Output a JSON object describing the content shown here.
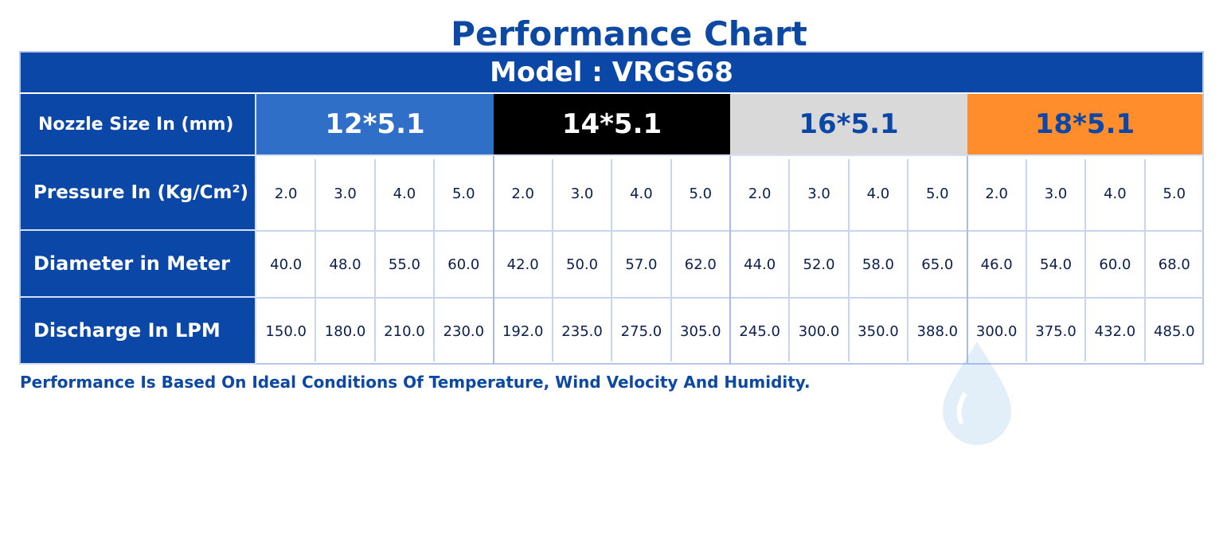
{
  "title": "Performance Chart",
  "model_label": "Model : VRGS68",
  "row_labels": {
    "nozzle": "Nozzle Size In (mm)",
    "pressure": "Pressure In (Kg/Cm²)",
    "diameter": "Diameter in Meter",
    "discharge": "Discharge In LPM"
  },
  "nozzles": [
    "12*5.1",
    "14*5.1",
    "16*5.1",
    "18*5.1"
  ],
  "pressure": [
    "2.0",
    "3.0",
    "4.0",
    "5.0",
    "2.0",
    "3.0",
    "4.0",
    "5.0",
    "2.0",
    "3.0",
    "4.0",
    "5.0",
    "2.0",
    "3.0",
    "4.0",
    "5.0"
  ],
  "diameter": [
    "40.0",
    "48.0",
    "55.0",
    "60.0",
    "42.0",
    "50.0",
    "57.0",
    "62.0",
    "44.0",
    "52.0",
    "58.0",
    "65.0",
    "46.0",
    "54.0",
    "60.0",
    "68.0"
  ],
  "discharge": [
    "150.0",
    "180.0",
    "210.0",
    "230.0",
    "192.0",
    "235.0",
    "275.0",
    "305.0",
    "245.0",
    "300.0",
    "350.0",
    "388.0",
    "300.0",
    "375.0",
    "432.0",
    "485.0"
  ],
  "note": "Performance Is Based On Ideal Conditions Of Temperature, Wind Velocity And Humidity.",
  "colors": {
    "header_blue": "#0a47a6",
    "nozzle_12": "#2f6fc8",
    "nozzle_14": "#000000",
    "nozzle_16": "#d9d9d9",
    "nozzle_18": "#ff8d2c"
  },
  "watermark_icon": "water-drop-logo-icon"
}
